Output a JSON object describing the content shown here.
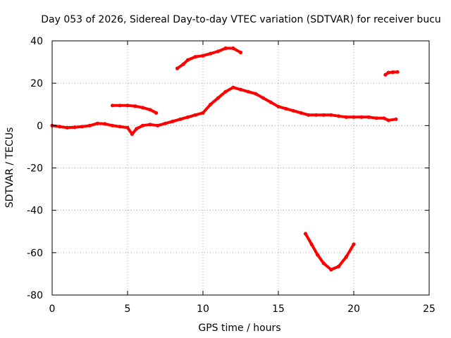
{
  "chart_data": {
    "type": "scatter",
    "title": "Day 053 of 2026, Sidereal Day-to-day VTEC variation (SDTVAR) for receiver bucu",
    "xlabel": "GPS time / hours",
    "ylabel": "SDTVAR / TECUs",
    "xlim": [
      0,
      25
    ],
    "ylim": [
      -80,
      40
    ],
    "xticks": [
      0,
      5,
      10,
      15,
      20,
      25
    ],
    "yticks": [
      -80,
      -60,
      -40,
      -20,
      0,
      20,
      40
    ],
    "grid": true,
    "series_color": "#ff0000",
    "series": [
      {
        "name": "main-trace",
        "points": [
          [
            0,
            0
          ],
          [
            0.5,
            -0.5
          ],
          [
            1,
            -1
          ],
          [
            1.5,
            -0.8
          ],
          [
            2,
            -0.5
          ],
          [
            2.5,
            0
          ],
          [
            3,
            1
          ],
          [
            3.5,
            0.8
          ],
          [
            4,
            0
          ],
          [
            4.5,
            -0.5
          ],
          [
            5,
            -1
          ],
          [
            5.3,
            -4
          ],
          [
            5.6,
            -1.5
          ],
          [
            6,
            0
          ],
          [
            6.5,
            0.5
          ],
          [
            7,
            0
          ],
          [
            7.5,
            1
          ],
          [
            8,
            2
          ],
          [
            8.5,
            3
          ],
          [
            9,
            4
          ],
          [
            9.5,
            5
          ],
          [
            10,
            6
          ],
          [
            10.5,
            10
          ],
          [
            11,
            13
          ],
          [
            11.5,
            16
          ],
          [
            12,
            18
          ],
          [
            12.5,
            17
          ],
          [
            13,
            16
          ],
          [
            13.5,
            15
          ],
          [
            14,
            13
          ],
          [
            14.5,
            11
          ],
          [
            15,
            9
          ],
          [
            15.5,
            8
          ],
          [
            16,
            7
          ],
          [
            16.5,
            6
          ],
          [
            17,
            5
          ],
          [
            17.5,
            5
          ],
          [
            18,
            5
          ],
          [
            18.5,
            5
          ],
          [
            19,
            4.5
          ],
          [
            19.5,
            4
          ],
          [
            20,
            4
          ],
          [
            20.5,
            4
          ],
          [
            21,
            4
          ],
          [
            21.5,
            3.5
          ],
          [
            22,
            3.5
          ],
          [
            22.3,
            2.5
          ],
          [
            22.8,
            3
          ]
        ]
      },
      {
        "name": "arc-near-10-tecu",
        "points": [
          [
            4.0,
            9.5
          ],
          [
            4.5,
            9.5
          ],
          [
            5.0,
            9.5
          ],
          [
            5.5,
            9.2
          ],
          [
            6.0,
            8.5
          ],
          [
            6.5,
            7.5
          ],
          [
            6.9,
            6.0
          ]
        ]
      },
      {
        "name": "arc-near-35-tecu",
        "points": [
          [
            8.3,
            27
          ],
          [
            8.7,
            29
          ],
          [
            9.0,
            31
          ],
          [
            9.5,
            32.5
          ],
          [
            10.0,
            33
          ],
          [
            10.5,
            34
          ],
          [
            11.0,
            35
          ],
          [
            11.5,
            36.5
          ],
          [
            12.0,
            36.5
          ],
          [
            12.5,
            34.5
          ]
        ]
      },
      {
        "name": "arc-near-25-tecu",
        "points": [
          [
            22.1,
            24
          ],
          [
            22.3,
            25
          ],
          [
            22.6,
            25.2
          ],
          [
            22.9,
            25.3
          ]
        ]
      },
      {
        "name": "arc-near-minus-65-tecu",
        "points": [
          [
            16.8,
            -51
          ],
          [
            17.2,
            -56
          ],
          [
            17.6,
            -61
          ],
          [
            18.0,
            -65
          ],
          [
            18.5,
            -68
          ],
          [
            19.0,
            -66.5
          ],
          [
            19.5,
            -62
          ],
          [
            20.0,
            -56
          ]
        ]
      }
    ]
  }
}
